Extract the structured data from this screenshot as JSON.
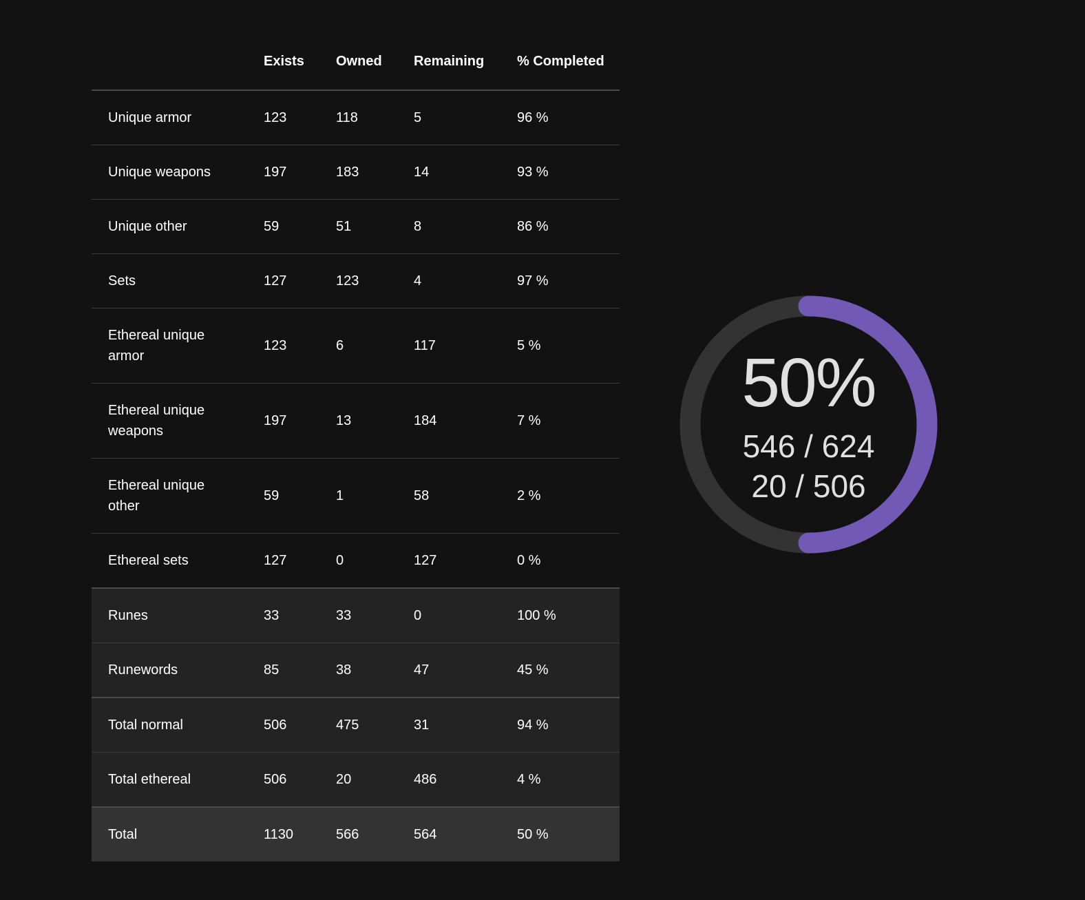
{
  "table": {
    "headers": {
      "name": "",
      "exists": "Exists",
      "owned": "Owned",
      "remaining": "Remaining",
      "completed": "% Completed"
    },
    "rows": [
      {
        "name": "Unique armor",
        "exists": "123",
        "owned": "118",
        "remaining": "5",
        "completed": "96 %"
      },
      {
        "name": "Unique weapons",
        "exists": "197",
        "owned": "183",
        "remaining": "14",
        "completed": "93 %"
      },
      {
        "name": "Unique other",
        "exists": "59",
        "owned": "51",
        "remaining": "8",
        "completed": "86 %"
      },
      {
        "name": "Sets",
        "exists": "127",
        "owned": "123",
        "remaining": "4",
        "completed": "97 %"
      },
      {
        "name": "Ethereal unique armor",
        "exists": "123",
        "owned": "6",
        "remaining": "117",
        "completed": "5 %"
      },
      {
        "name": "Ethereal unique weapons",
        "exists": "197",
        "owned": "13",
        "remaining": "184",
        "completed": "7 %"
      },
      {
        "name": "Ethereal unique other",
        "exists": "59",
        "owned": "1",
        "remaining": "58",
        "completed": "2 %"
      },
      {
        "name": "Ethereal sets",
        "exists": "127",
        "owned": "0",
        "remaining": "127",
        "completed": "0 %"
      },
      {
        "name": "Runes",
        "exists": "33",
        "owned": "33",
        "remaining": "0",
        "completed": "100 %"
      },
      {
        "name": "Runewords",
        "exists": "85",
        "owned": "38",
        "remaining": "47",
        "completed": "45 %"
      },
      {
        "name": "Total normal",
        "exists": "506",
        "owned": "475",
        "remaining": "31",
        "completed": "94 %"
      },
      {
        "name": "Total ethereal",
        "exists": "506",
        "owned": "20",
        "remaining": "486",
        "completed": "4 %"
      },
      {
        "name": "Total",
        "exists": "1130",
        "owned": "566",
        "remaining": "564",
        "completed": "50 %"
      }
    ]
  },
  "progress": {
    "percent_label": "50%",
    "fraction": 0.5,
    "line1": "546 / 624",
    "line2": "20 / 506"
  },
  "colors": {
    "background": "#121212",
    "ring_track": "#333333",
    "ring_accent": "#7159b5",
    "text": "#ffffff",
    "ring_text": "#e0e0e0"
  }
}
